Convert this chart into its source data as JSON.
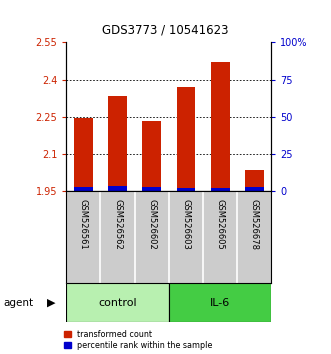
{
  "title": "GDS3773 / 10541623",
  "samples": [
    "GSM526561",
    "GSM526562",
    "GSM526602",
    "GSM526603",
    "GSM526605",
    "GSM526678"
  ],
  "red_values": [
    2.245,
    2.335,
    2.235,
    2.37,
    2.47,
    2.035
  ],
  "blue_values": [
    0.018,
    0.02,
    0.016,
    0.014,
    0.012,
    0.015
  ],
  "ymin": 1.95,
  "ymax": 2.55,
  "yticks_left": [
    1.95,
    2.1,
    2.25,
    2.4,
    2.55
  ],
  "yticks_right": [
    0,
    25,
    50,
    75,
    100
  ],
  "ytick_labels_right": [
    "0",
    "25",
    "50",
    "75",
    "100%"
  ],
  "groups": [
    {
      "label": "control",
      "indices": [
        0,
        1,
        2
      ],
      "color": "#b8f0b0"
    },
    {
      "label": "IL-6",
      "indices": [
        3,
        4,
        5
      ],
      "color": "#44cc44"
    }
  ],
  "bar_color_red": "#cc2200",
  "bar_color_blue": "#0000cc",
  "bar_width": 0.55,
  "agent_label": "agent",
  "legend_red": "transformed count",
  "legend_blue": "percentile rank within the sample",
  "left_tick_color": "#cc2200",
  "right_tick_color": "#0000cc",
  "bg_color": "#ffffff",
  "plot_bg_color": "#ffffff",
  "sample_box_color": "#cccccc"
}
